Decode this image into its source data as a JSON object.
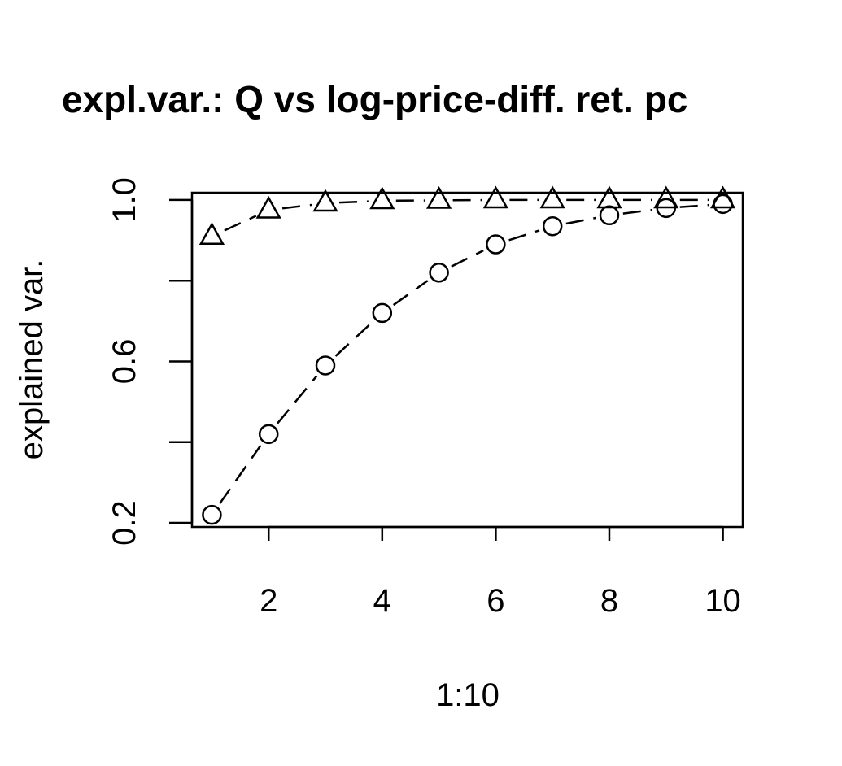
{
  "chart_data": {
    "type": "line",
    "title": "expl.var.: Q vs log-price-diff. ret. pc",
    "xlabel": "1:10",
    "ylabel": "explained var.",
    "x": [
      1,
      2,
      3,
      4,
      5,
      6,
      7,
      8,
      9,
      10
    ],
    "xlim": [
      0.65,
      10.35
    ],
    "ylim": [
      0.19,
      1.018
    ],
    "x_ticks": [
      2,
      4,
      6,
      8,
      10
    ],
    "x_tick_labels": [
      "2",
      "4",
      "6",
      "8",
      "10"
    ],
    "y_ticks": [
      0.2,
      0.4,
      0.6,
      0.8,
      1.0
    ],
    "y_tick_labels": [
      "0.2",
      "",
      "0.6",
      "",
      "1.0"
    ],
    "grid": false,
    "series": [
      {
        "marker": "triangle",
        "line": "dashed",
        "values": [
          0.91,
          0.975,
          0.992,
          0.998,
          0.999,
          1.0,
          1.0,
          1.0,
          1.0,
          1.0
        ]
      },
      {
        "marker": "circle",
        "line": "dashed",
        "values": [
          0.22,
          0.42,
          0.59,
          0.72,
          0.82,
          0.89,
          0.935,
          0.962,
          0.98,
          0.99
        ]
      }
    ]
  }
}
